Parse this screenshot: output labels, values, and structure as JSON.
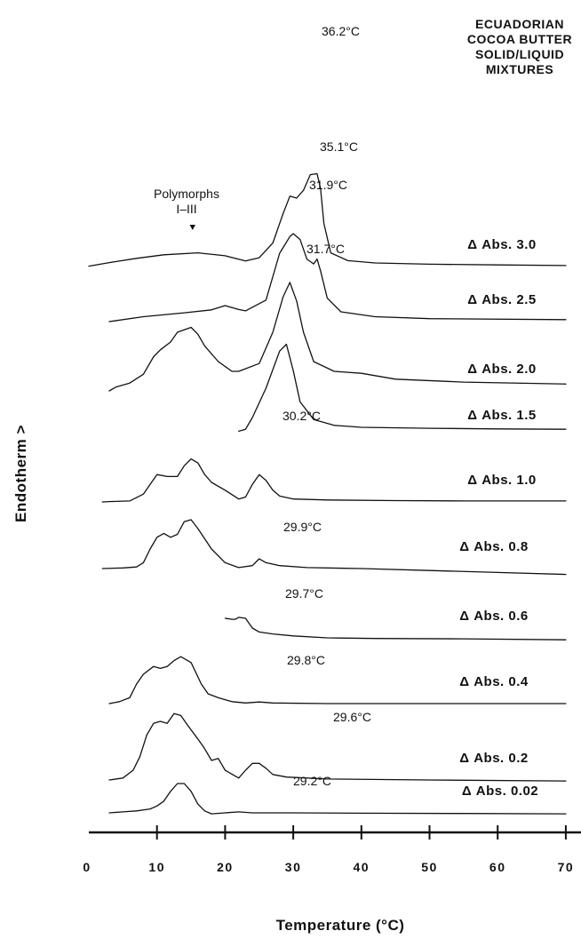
{
  "chart_data": {
    "type": "line",
    "title": [
      "ECUADORIAN",
      "COCOA BUTTER",
      "SOLID/LIQUID",
      "MIXTURES"
    ],
    "xlabel": "Temperature (°C)",
    "ylabel": "Endotherm >",
    "xlim": [
      0,
      70
    ],
    "x_ticks": [
      "0",
      "10",
      "20",
      "30",
      "40",
      "50",
      "60",
      "70"
    ],
    "polymorph_annotation": [
      "Polymorphs",
      "I–III"
    ],
    "series": [
      {
        "name": "Δ Abs. 3.0",
        "peak": "36.2°C",
        "points": [
          [
            0,
            0.02
          ],
          [
            3,
            0.2
          ],
          [
            7,
            0.42
          ],
          [
            11,
            0.6
          ],
          [
            16,
            0.7
          ],
          [
            20,
            0.55
          ],
          [
            23,
            0.28
          ],
          [
            25,
            0.45
          ],
          [
            27,
            1.2
          ],
          [
            28.5,
            2.7
          ],
          [
            29.5,
            3.6
          ],
          [
            30.5,
            3.5
          ],
          [
            31.5,
            3.9
          ],
          [
            32.5,
            4.7
          ],
          [
            33.5,
            4.75
          ],
          [
            34,
            4.0
          ],
          [
            34.5,
            2.2
          ],
          [
            35.5,
            0.7
          ],
          [
            38,
            0.3
          ],
          [
            42,
            0.18
          ],
          [
            50,
            0.12
          ],
          [
            60,
            0.08
          ],
          [
            70,
            0.05
          ]
        ]
      },
      {
        "name": "Δ Abs. 2.5",
        "peak": "35.1°C",
        "points": [
          [
            3,
            0
          ],
          [
            8,
            0.25
          ],
          [
            14,
            0.45
          ],
          [
            18,
            0.6
          ],
          [
            20,
            0.82
          ],
          [
            22,
            0.62
          ],
          [
            23,
            0.55
          ],
          [
            26,
            1.1
          ],
          [
            28,
            3.5
          ],
          [
            29.5,
            4.35
          ],
          [
            30,
            4.5
          ],
          [
            31,
            4.2
          ],
          [
            32,
            3.2
          ],
          [
            33,
            2.95
          ],
          [
            33.5,
            3.2
          ],
          [
            34,
            2.6
          ],
          [
            35,
            1.2
          ],
          [
            37,
            0.5
          ],
          [
            42,
            0.25
          ],
          [
            50,
            0.15
          ],
          [
            70,
            0.1
          ]
        ]
      },
      {
        "name": "Δ Abs. 2.0",
        "peak": "31.9°C",
        "points": [
          [
            3,
            0
          ],
          [
            4,
            0.2
          ],
          [
            6,
            0.4
          ],
          [
            8,
            0.85
          ],
          [
            9.5,
            1.75
          ],
          [
            10.5,
            2.1
          ],
          [
            12,
            2.5
          ],
          [
            13,
            3.0
          ],
          [
            15,
            3.25
          ],
          [
            16,
            2.9
          ],
          [
            17,
            2.3
          ],
          [
            19,
            1.5
          ],
          [
            21,
            1.0
          ],
          [
            22,
            1.0
          ],
          [
            25,
            1.4
          ],
          [
            27,
            3.0
          ],
          [
            28.5,
            4.8
          ],
          [
            29.5,
            5.55
          ],
          [
            30.5,
            4.6
          ],
          [
            31.5,
            3.0
          ],
          [
            33,
            1.5
          ],
          [
            36,
            1.0
          ],
          [
            40,
            0.9
          ],
          [
            45,
            0.6
          ],
          [
            55,
            0.45
          ],
          [
            70,
            0.35
          ]
        ]
      },
      {
        "name": "Δ Abs. 1.5",
        "peak": "31.7°C",
        "points": [
          [
            22,
            0.3
          ],
          [
            23,
            0.4
          ],
          [
            24,
            1.0
          ],
          [
            26,
            2.5
          ],
          [
            28,
            4.4
          ],
          [
            29,
            4.75
          ],
          [
            30,
            3.4
          ],
          [
            31,
            1.8
          ],
          [
            33,
            0.9
          ],
          [
            36,
            0.6
          ],
          [
            40,
            0.5
          ],
          [
            50,
            0.45
          ],
          [
            60,
            0.42
          ],
          [
            70,
            0.4
          ]
        ]
      },
      {
        "name": "Δ Abs. 1.0",
        "peak": "30.2°C",
        "points": [
          [
            2,
            0
          ],
          [
            3,
            0.02
          ],
          [
            6,
            0.05
          ],
          [
            8,
            0.4
          ],
          [
            9,
            0.9
          ],
          [
            10,
            1.4
          ],
          [
            11.5,
            1.3
          ],
          [
            13,
            1.3
          ],
          [
            14,
            1.85
          ],
          [
            15,
            2.2
          ],
          [
            16,
            2.0
          ],
          [
            17,
            1.4
          ],
          [
            18,
            1.0
          ],
          [
            20,
            0.6
          ],
          [
            22,
            0.15
          ],
          [
            23,
            0.25
          ],
          [
            24,
            0.9
          ],
          [
            25,
            1.4
          ],
          [
            26,
            1.1
          ],
          [
            27,
            0.6
          ],
          [
            28,
            0.3
          ],
          [
            30,
            0.15
          ],
          [
            35,
            0.1
          ],
          [
            45,
            0.07
          ],
          [
            55,
            0.05
          ],
          [
            70,
            0.05
          ]
        ]
      },
      {
        "name": "Δ Abs. 0.8",
        "peak": "29.9°C",
        "points": [
          [
            2,
            0
          ],
          [
            5,
            0.03
          ],
          [
            7,
            0.08
          ],
          [
            8,
            0.3
          ],
          [
            9,
            1.0
          ],
          [
            10,
            1.6
          ],
          [
            11,
            1.8
          ],
          [
            12,
            1.6
          ],
          [
            13,
            1.75
          ],
          [
            14,
            2.4
          ],
          [
            15,
            2.5
          ],
          [
            16,
            2.05
          ],
          [
            18,
            1.0
          ],
          [
            20,
            0.3
          ],
          [
            22,
            0.05
          ],
          [
            24,
            0.15
          ],
          [
            25,
            0.5
          ],
          [
            26,
            0.3
          ],
          [
            28,
            0.15
          ],
          [
            32,
            0.05
          ],
          [
            40,
            0.0
          ],
          [
            50,
            -0.1
          ],
          [
            60,
            -0.2
          ],
          [
            70,
            -0.3
          ]
        ]
      },
      {
        "name": "Δ Abs. 0.6",
        "peak": "29.7°C",
        "points": [
          [
            20,
            1.0
          ],
          [
            21,
            0.95
          ],
          [
            21.5,
            0.95
          ],
          [
            22,
            1.05
          ],
          [
            23,
            1.0
          ],
          [
            24,
            0.5
          ],
          [
            25,
            0.3
          ],
          [
            27,
            0.2
          ],
          [
            30,
            0.1
          ],
          [
            35,
            0.0
          ],
          [
            42,
            -0.03
          ],
          [
            55,
            -0.05
          ],
          [
            70,
            -0.1
          ]
        ]
      },
      {
        "name": "Δ Abs. 0.4",
        "peak": "29.8°C",
        "points": [
          [
            3,
            0
          ],
          [
            4.5,
            0.1
          ],
          [
            6,
            0.3
          ],
          [
            7,
            1.0
          ],
          [
            8,
            1.5
          ],
          [
            9.5,
            1.9
          ],
          [
            10.5,
            1.8
          ],
          [
            11.5,
            1.9
          ],
          [
            12.5,
            2.2
          ],
          [
            13.5,
            2.4
          ],
          [
            15,
            2.1
          ],
          [
            16.5,
            1.0
          ],
          [
            17.5,
            0.5
          ],
          [
            19,
            0.3
          ],
          [
            21,
            0.1
          ],
          [
            23,
            0.03
          ],
          [
            25,
            0.08
          ],
          [
            27,
            0.03
          ],
          [
            35,
            0.0
          ],
          [
            70,
            0.0
          ]
        ]
      },
      {
        "name": "Δ Abs. 0.2",
        "peak": "29.6°C",
        "points": [
          [
            3,
            0
          ],
          [
            5,
            0.1
          ],
          [
            6.5,
            0.5
          ],
          [
            7.5,
            1.2
          ],
          [
            8.5,
            2.3
          ],
          [
            9.5,
            2.9
          ],
          [
            10.5,
            3.0
          ],
          [
            11.5,
            2.9
          ],
          [
            12.5,
            3.4
          ],
          [
            13.5,
            3.3
          ],
          [
            14.5,
            2.8
          ],
          [
            16,
            2.1
          ],
          [
            17,
            1.6
          ],
          [
            18,
            1.0
          ],
          [
            19,
            1.1
          ],
          [
            20,
            0.5
          ],
          [
            22,
            0.1
          ],
          [
            23,
            0.5
          ],
          [
            24,
            0.85
          ],
          [
            25,
            0.85
          ],
          [
            26,
            0.6
          ],
          [
            27,
            0.28
          ],
          [
            29,
            0.15
          ],
          [
            35,
            0.05
          ],
          [
            50,
            0.0
          ],
          [
            70,
            -0.05
          ]
        ]
      },
      {
        "name": "Δ Abs. 0.02",
        "peak": "29.2°C",
        "points": [
          [
            3,
            0
          ],
          [
            5,
            0.05
          ],
          [
            7,
            0.1
          ],
          [
            9,
            0.2
          ],
          [
            10,
            0.35
          ],
          [
            11,
            0.6
          ],
          [
            12,
            1.1
          ],
          [
            13,
            1.5
          ],
          [
            14,
            1.5
          ],
          [
            15,
            1.1
          ],
          [
            16,
            0.45
          ],
          [
            17,
            0.1
          ],
          [
            18,
            -0.05
          ],
          [
            20,
            0.0
          ],
          [
            22,
            0.05
          ],
          [
            24,
            0.0
          ],
          [
            27,
            0.0
          ],
          [
            30,
            0.0
          ],
          [
            40,
            -0.02
          ],
          [
            55,
            -0.03
          ],
          [
            70,
            -0.05
          ]
        ]
      }
    ]
  }
}
